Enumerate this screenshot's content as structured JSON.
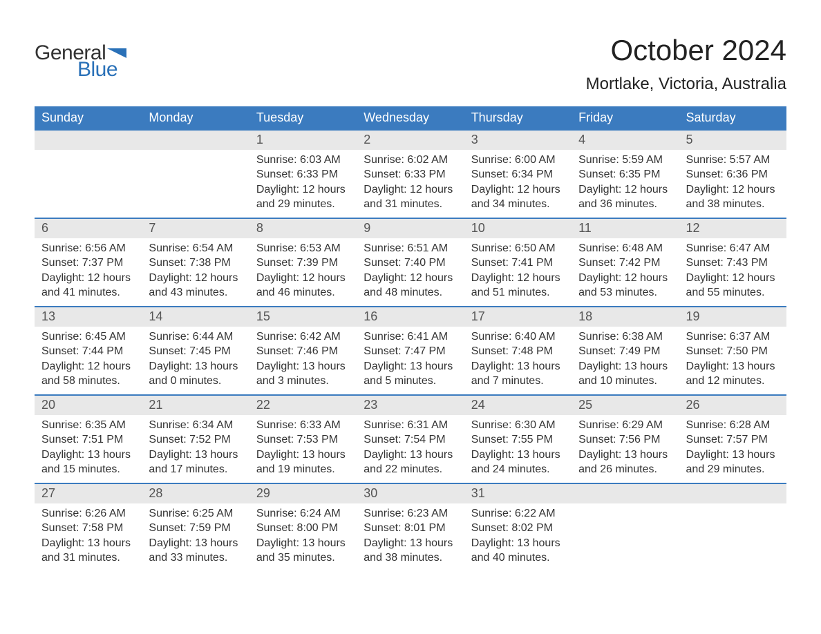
{
  "brand": {
    "line1": "General",
    "line2": "Blue",
    "flag_color": "#2a71b8"
  },
  "title": "October 2024",
  "location": "Mortlake, Victoria, Australia",
  "colors": {
    "header_bg": "#3b7bbf",
    "header_text": "#ffffff",
    "daynum_bg": "#e8e8e8",
    "daynum_text": "#555555",
    "body_text": "#333333",
    "row_border": "#3b7bbf",
    "page_bg": "#ffffff",
    "logo_blue": "#2a71b8"
  },
  "day_headers": [
    "Sunday",
    "Monday",
    "Tuesday",
    "Wednesday",
    "Thursday",
    "Friday",
    "Saturday"
  ],
  "weeks": [
    [
      null,
      null,
      {
        "n": "1",
        "sunrise": "6:03 AM",
        "sunset": "6:33 PM",
        "daylight": "12 hours and 29 minutes."
      },
      {
        "n": "2",
        "sunrise": "6:02 AM",
        "sunset": "6:33 PM",
        "daylight": "12 hours and 31 minutes."
      },
      {
        "n": "3",
        "sunrise": "6:00 AM",
        "sunset": "6:34 PM",
        "daylight": "12 hours and 34 minutes."
      },
      {
        "n": "4",
        "sunrise": "5:59 AM",
        "sunset": "6:35 PM",
        "daylight": "12 hours and 36 minutes."
      },
      {
        "n": "5",
        "sunrise": "5:57 AM",
        "sunset": "6:36 PM",
        "daylight": "12 hours and 38 minutes."
      }
    ],
    [
      {
        "n": "6",
        "sunrise": "6:56 AM",
        "sunset": "7:37 PM",
        "daylight": "12 hours and 41 minutes."
      },
      {
        "n": "7",
        "sunrise": "6:54 AM",
        "sunset": "7:38 PM",
        "daylight": "12 hours and 43 minutes."
      },
      {
        "n": "8",
        "sunrise": "6:53 AM",
        "sunset": "7:39 PM",
        "daylight": "12 hours and 46 minutes."
      },
      {
        "n": "9",
        "sunrise": "6:51 AM",
        "sunset": "7:40 PM",
        "daylight": "12 hours and 48 minutes."
      },
      {
        "n": "10",
        "sunrise": "6:50 AM",
        "sunset": "7:41 PM",
        "daylight": "12 hours and 51 minutes."
      },
      {
        "n": "11",
        "sunrise": "6:48 AM",
        "sunset": "7:42 PM",
        "daylight": "12 hours and 53 minutes."
      },
      {
        "n": "12",
        "sunrise": "6:47 AM",
        "sunset": "7:43 PM",
        "daylight": "12 hours and 55 minutes."
      }
    ],
    [
      {
        "n": "13",
        "sunrise": "6:45 AM",
        "sunset": "7:44 PM",
        "daylight": "12 hours and 58 minutes."
      },
      {
        "n": "14",
        "sunrise": "6:44 AM",
        "sunset": "7:45 PM",
        "daylight": "13 hours and 0 minutes."
      },
      {
        "n": "15",
        "sunrise": "6:42 AM",
        "sunset": "7:46 PM",
        "daylight": "13 hours and 3 minutes."
      },
      {
        "n": "16",
        "sunrise": "6:41 AM",
        "sunset": "7:47 PM",
        "daylight": "13 hours and 5 minutes."
      },
      {
        "n": "17",
        "sunrise": "6:40 AM",
        "sunset": "7:48 PM",
        "daylight": "13 hours and 7 minutes."
      },
      {
        "n": "18",
        "sunrise": "6:38 AM",
        "sunset": "7:49 PM",
        "daylight": "13 hours and 10 minutes."
      },
      {
        "n": "19",
        "sunrise": "6:37 AM",
        "sunset": "7:50 PM",
        "daylight": "13 hours and 12 minutes."
      }
    ],
    [
      {
        "n": "20",
        "sunrise": "6:35 AM",
        "sunset": "7:51 PM",
        "daylight": "13 hours and 15 minutes."
      },
      {
        "n": "21",
        "sunrise": "6:34 AM",
        "sunset": "7:52 PM",
        "daylight": "13 hours and 17 minutes."
      },
      {
        "n": "22",
        "sunrise": "6:33 AM",
        "sunset": "7:53 PM",
        "daylight": "13 hours and 19 minutes."
      },
      {
        "n": "23",
        "sunrise": "6:31 AM",
        "sunset": "7:54 PM",
        "daylight": "13 hours and 22 minutes."
      },
      {
        "n": "24",
        "sunrise": "6:30 AM",
        "sunset": "7:55 PM",
        "daylight": "13 hours and 24 minutes."
      },
      {
        "n": "25",
        "sunrise": "6:29 AM",
        "sunset": "7:56 PM",
        "daylight": "13 hours and 26 minutes."
      },
      {
        "n": "26",
        "sunrise": "6:28 AM",
        "sunset": "7:57 PM",
        "daylight": "13 hours and 29 minutes."
      }
    ],
    [
      {
        "n": "27",
        "sunrise": "6:26 AM",
        "sunset": "7:58 PM",
        "daylight": "13 hours and 31 minutes."
      },
      {
        "n": "28",
        "sunrise": "6:25 AM",
        "sunset": "7:59 PM",
        "daylight": "13 hours and 33 minutes."
      },
      {
        "n": "29",
        "sunrise": "6:24 AM",
        "sunset": "8:00 PM",
        "daylight": "13 hours and 35 minutes."
      },
      {
        "n": "30",
        "sunrise": "6:23 AM",
        "sunset": "8:01 PM",
        "daylight": "13 hours and 38 minutes."
      },
      {
        "n": "31",
        "sunrise": "6:22 AM",
        "sunset": "8:02 PM",
        "daylight": "13 hours and 40 minutes."
      },
      null,
      null
    ]
  ],
  "labels": {
    "sunrise": "Sunrise:",
    "sunset": "Sunset:",
    "daylight": "Daylight:"
  }
}
